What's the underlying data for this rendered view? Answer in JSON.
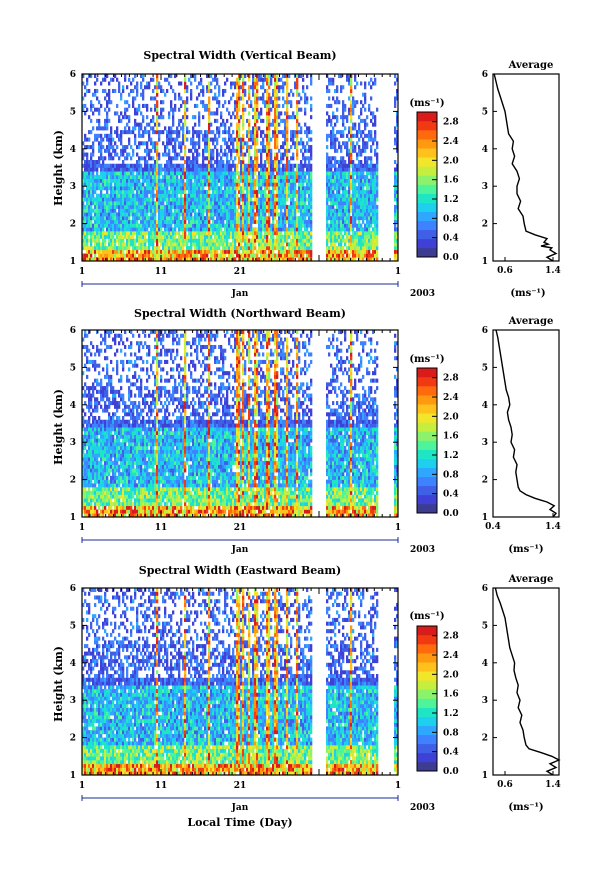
{
  "figure": {
    "xlabel": "Local Time (Day)"
  },
  "colorbar": {
    "unit": "(ms⁻¹)",
    "ticks": [
      "0.0",
      "0.4",
      "0.8",
      "1.2",
      "1.6",
      "2.0",
      "2.4",
      "2.8"
    ],
    "colors": [
      "#3c3c90",
      "#3f40d6",
      "#3f5fe6",
      "#3f82ff",
      "#2ea8ff",
      "#1dd0ee",
      "#1ee6c4",
      "#4ef49a",
      "#8cf26a",
      "#c6ee3e",
      "#f2e62a",
      "#ffc21c",
      "#ff9a10",
      "#ff6a0c",
      "#f23a12",
      "#d81c1c"
    ]
  },
  "chart_data": [
    {
      "type": "heatmap",
      "title": "Spectral Width (Vertical Beam)",
      "ylabel": "Height (km)",
      "yticks": [
        1,
        2,
        3,
        4,
        5,
        6
      ],
      "ylim": [
        1,
        6
      ],
      "xticks": [
        "1",
        "11",
        "21",
        "1"
      ],
      "month": "Jan",
      "year": "2003",
      "value_range": [
        0.0,
        3.0
      ],
      "data_gaps": [
        [
          29.0,
          31.0
        ],
        [
          37.5,
          39.5
        ]
      ],
      "profile": {
        "title": "Average",
        "xticks": [
          "0.6",
          "1.4"
        ],
        "xlim": [
          0.4,
          1.5
        ],
        "xlabel": "(ms⁻¹)",
        "height": [
          1.0,
          1.1,
          1.2,
          1.3,
          1.35,
          1.4,
          1.45,
          1.5,
          1.6,
          1.7,
          1.8,
          2.0,
          2.2,
          2.4,
          2.6,
          2.8,
          3.0,
          3.2,
          3.4,
          3.6,
          3.8,
          4.0,
          4.2,
          4.4,
          4.6,
          4.8,
          5.0,
          5.2,
          5.4,
          5.6,
          5.8,
          6.0
        ],
        "width": [
          1.4,
          1.3,
          1.45,
          1.35,
          1.38,
          1.2,
          1.32,
          1.25,
          1.3,
          1.1,
          0.95,
          0.92,
          0.9,
          0.82,
          0.86,
          0.8,
          0.8,
          0.84,
          0.8,
          0.72,
          0.76,
          0.72,
          0.74,
          0.66,
          0.64,
          0.62,
          0.6,
          0.56,
          0.52,
          0.48,
          0.45,
          0.42
        ]
      }
    },
    {
      "type": "heatmap",
      "title": "Spectral Width (Northward Beam)",
      "ylabel": "Height (km)",
      "yticks": [
        1,
        2,
        3,
        4,
        5,
        6
      ],
      "ylim": [
        1,
        6
      ],
      "xticks": [
        "1",
        "11",
        "21",
        "1"
      ],
      "month": "Jan",
      "year": "2003",
      "value_range": [
        0.0,
        3.0
      ],
      "data_gaps": [
        [
          29.0,
          31.0
        ],
        [
          37.5,
          39.5
        ]
      ],
      "profile": {
        "title": "Average",
        "xticks": [
          "0.4",
          "1.4"
        ],
        "xlim": [
          0.4,
          1.5
        ],
        "xlabel": "(ms⁻¹)",
        "height": [
          1.0,
          1.1,
          1.2,
          1.3,
          1.4,
          1.45,
          1.5,
          1.6,
          1.7,
          1.8,
          2.0,
          2.2,
          2.4,
          2.6,
          2.8,
          3.0,
          3.2,
          3.4,
          3.6,
          3.8,
          4.0,
          4.2,
          4.4,
          4.6,
          4.8,
          5.0,
          5.2,
          5.4,
          5.6,
          5.8,
          6.0
        ],
        "width": [
          1.4,
          1.45,
          1.35,
          1.42,
          1.3,
          1.2,
          1.1,
          0.95,
          0.85,
          0.82,
          0.8,
          0.78,
          0.8,
          0.74,
          0.76,
          0.7,
          0.72,
          0.7,
          0.66,
          0.64,
          0.68,
          0.66,
          0.62,
          0.6,
          0.58,
          0.56,
          0.54,
          0.52,
          0.5,
          0.48,
          0.45
        ]
      }
    },
    {
      "type": "heatmap",
      "title": "Spectral Width (Eastward Beam)",
      "ylabel": "Height (km)",
      "yticks": [
        1,
        2,
        3,
        4,
        5,
        6
      ],
      "ylim": [
        1,
        6
      ],
      "xticks": [
        "1",
        "11",
        "21",
        "1"
      ],
      "month": "Jan",
      "year": "2003",
      "value_range": [
        0.0,
        3.0
      ],
      "data_gaps": [
        [
          29.0,
          31.0
        ],
        [
          37.5,
          39.5
        ]
      ],
      "profile": {
        "title": "Average",
        "xticks": [
          "0.6",
          "1.4"
        ],
        "xlim": [
          0.4,
          1.5
        ],
        "xlabel": "(ms⁻¹)",
        "height": [
          1.0,
          1.1,
          1.2,
          1.3,
          1.4,
          1.5,
          1.6,
          1.7,
          1.8,
          2.0,
          2.2,
          2.4,
          2.6,
          2.8,
          3.0,
          3.2,
          3.4,
          3.6,
          3.8,
          4.0,
          4.2,
          4.4,
          4.6,
          4.8,
          5.0,
          5.2,
          5.4,
          5.6,
          5.8,
          6.0
        ],
        "width": [
          1.4,
          1.3,
          1.45,
          1.35,
          1.5,
          1.38,
          1.2,
          1.0,
          0.95,
          0.92,
          0.9,
          0.85,
          0.88,
          0.82,
          0.85,
          0.8,
          0.82,
          0.78,
          0.75,
          0.76,
          0.72,
          0.68,
          0.66,
          0.64,
          0.62,
          0.6,
          0.56,
          0.52,
          0.47,
          0.44
        ]
      }
    }
  ]
}
